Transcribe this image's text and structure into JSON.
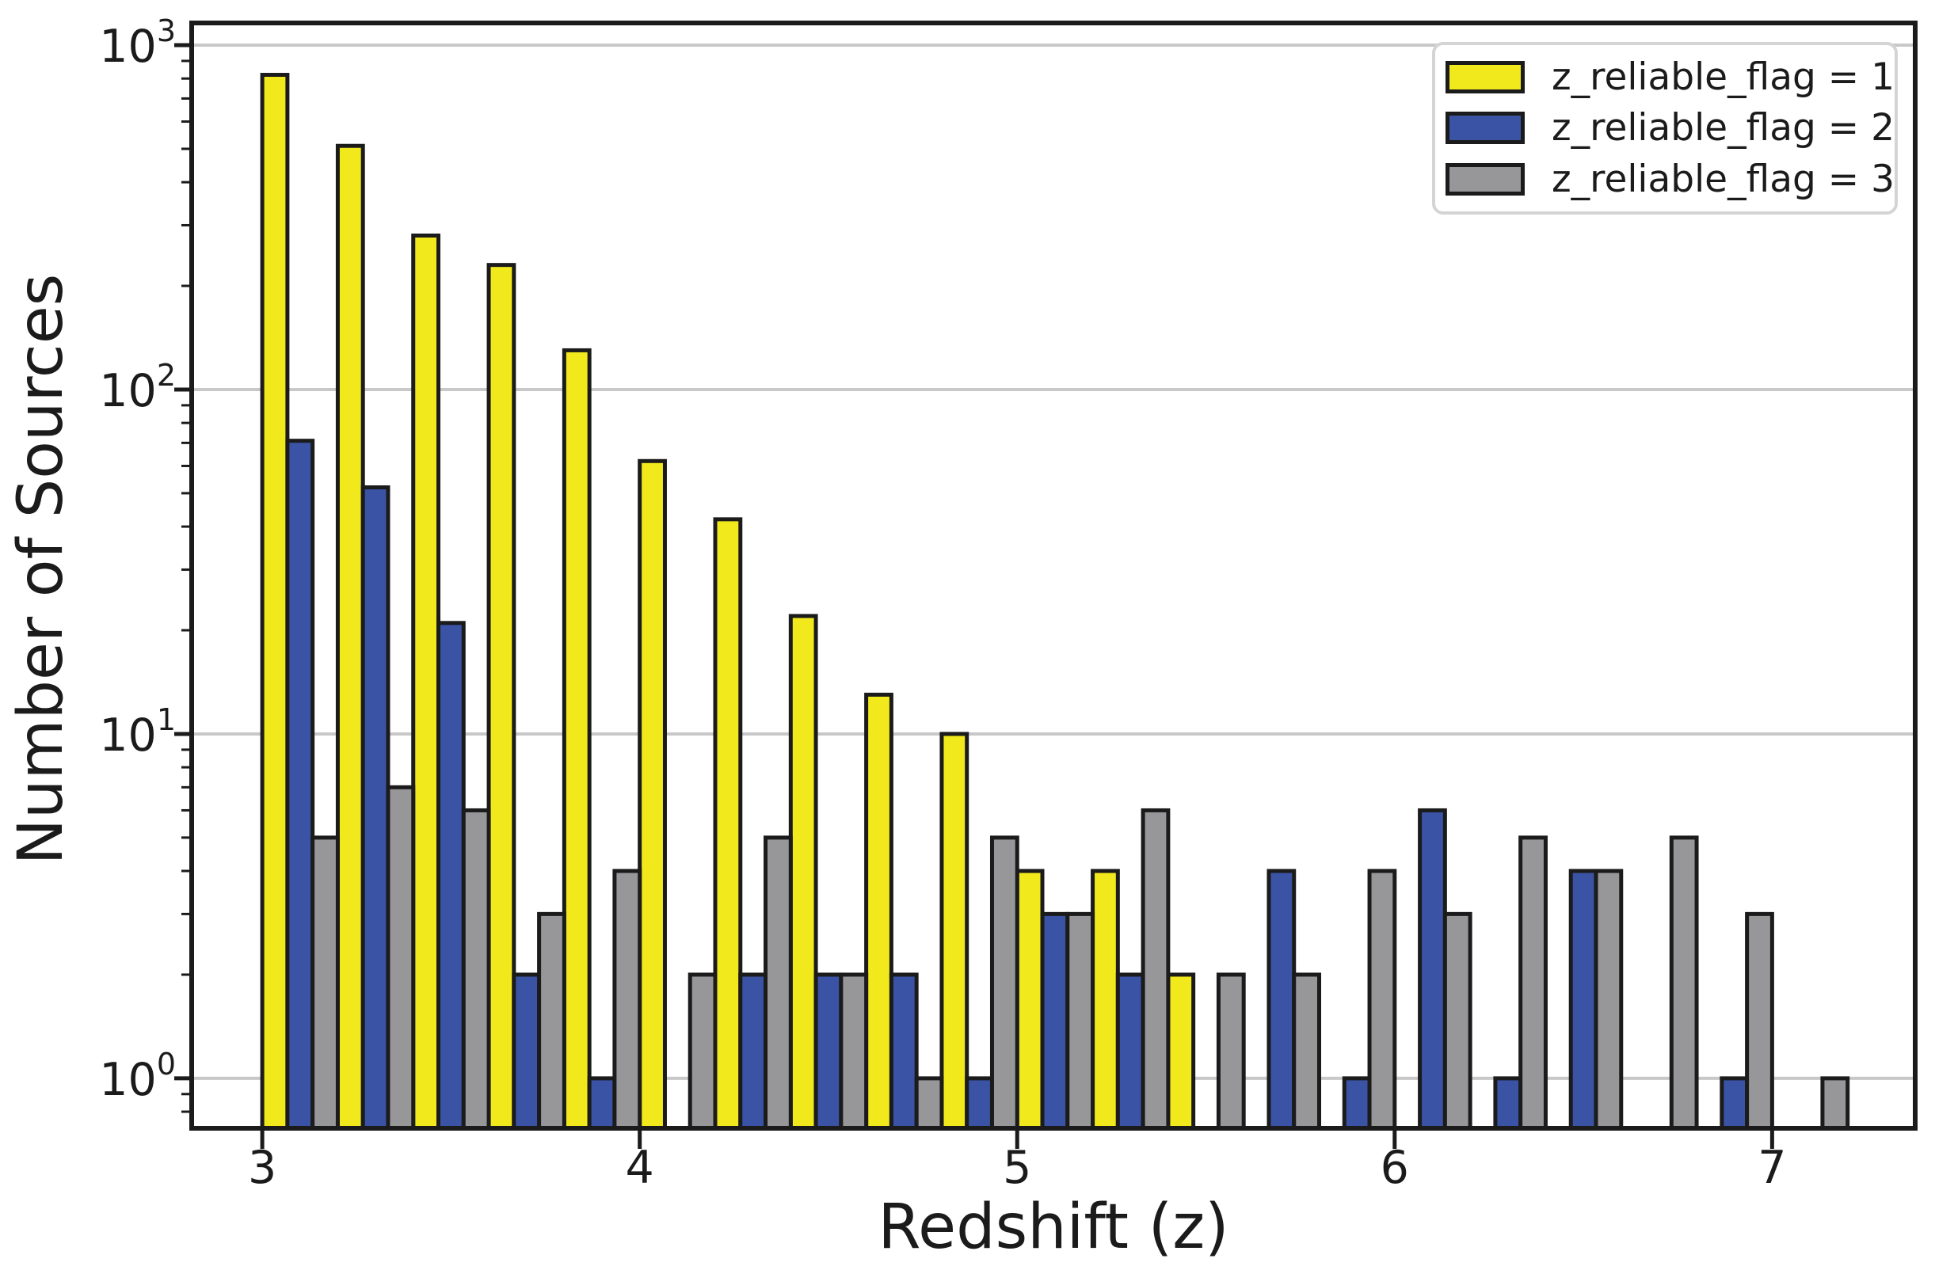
{
  "figure": {
    "xlabel": "Redshift (z)",
    "ylabel": "Number of Sources",
    "background": "#ffffff"
  },
  "axes": {
    "xlim": [
      2.813,
      7.379
    ],
    "ylim": [
      0.716,
      1160
    ],
    "y_scale": "log",
    "x_ticks": [
      {
        "value": 3,
        "label": "3"
      },
      {
        "value": 4,
        "label": "4"
      },
      {
        "value": 5,
        "label": "5"
      },
      {
        "value": 6,
        "label": "6"
      },
      {
        "value": 7,
        "label": "7"
      }
    ],
    "y_ticks": [
      {
        "value": 1,
        "base": "10",
        "exp": "0"
      },
      {
        "value": 10,
        "base": "10",
        "exp": "1"
      },
      {
        "value": 100,
        "base": "10",
        "exp": "2"
      },
      {
        "value": 1000,
        "base": "10",
        "exp": "3"
      }
    ],
    "grid_color": "#c8c8c8",
    "spine_color": "#1b1b1b",
    "tick_color": "#1b1b1b"
  },
  "legend": {
    "entries": [
      {
        "label": "z_reliable_flag = 1",
        "color": "#f2e91c"
      },
      {
        "label": "z_reliable_flag = 2",
        "color": "#3a53a4"
      },
      {
        "label": "z_reliable_flag = 3",
        "color": "#97979a"
      }
    ]
  },
  "chart_data": {
    "type": "bar",
    "mode": "grouped-histogram",
    "title": "",
    "xlabel": "Redshift (z)",
    "ylabel": "Number of Sources",
    "xlim": [
      2.81,
      7.38
    ],
    "ylim": [
      0.72,
      1160
    ],
    "yscale": "log",
    "grid": "major-y",
    "legend_position": "upper right",
    "bin_start": 3.0,
    "bin_width": 0.2,
    "bin_edges": [
      3.0,
      3.2,
      3.4,
      3.6,
      3.8,
      4.0,
      4.2,
      4.4,
      4.6,
      4.8,
      5.0,
      5.2,
      5.4,
      5.6,
      5.8,
      6.0,
      6.2,
      6.4,
      6.6,
      6.8,
      7.0,
      7.2
    ],
    "edge_color": "#1b1b1b",
    "series": [
      {
        "name": "z_reliable_flag = 1",
        "key": "flag1",
        "color": "#f2e91c",
        "values": [
          820,
          510,
          280,
          230,
          130,
          62,
          42,
          22,
          13,
          10,
          4,
          4,
          2,
          0,
          0,
          0,
          0,
          0,
          0,
          0,
          0
        ]
      },
      {
        "name": "z_reliable_flag = 2",
        "key": "flag2",
        "color": "#3a53a4",
        "values": [
          71,
          52,
          21,
          2,
          1,
          0,
          2,
          2,
          2,
          1,
          3,
          2,
          0,
          4,
          1,
          6,
          1,
          4,
          0,
          1,
          0
        ]
      },
      {
        "name": "z_reliable_flag = 3",
        "key": "flag3",
        "color": "#97979a",
        "values": [
          5,
          7,
          6,
          3,
          4,
          2,
          5,
          2,
          1,
          5,
          3,
          6,
          2,
          2,
          4,
          3,
          5,
          4,
          5,
          3,
          1
        ]
      }
    ]
  }
}
